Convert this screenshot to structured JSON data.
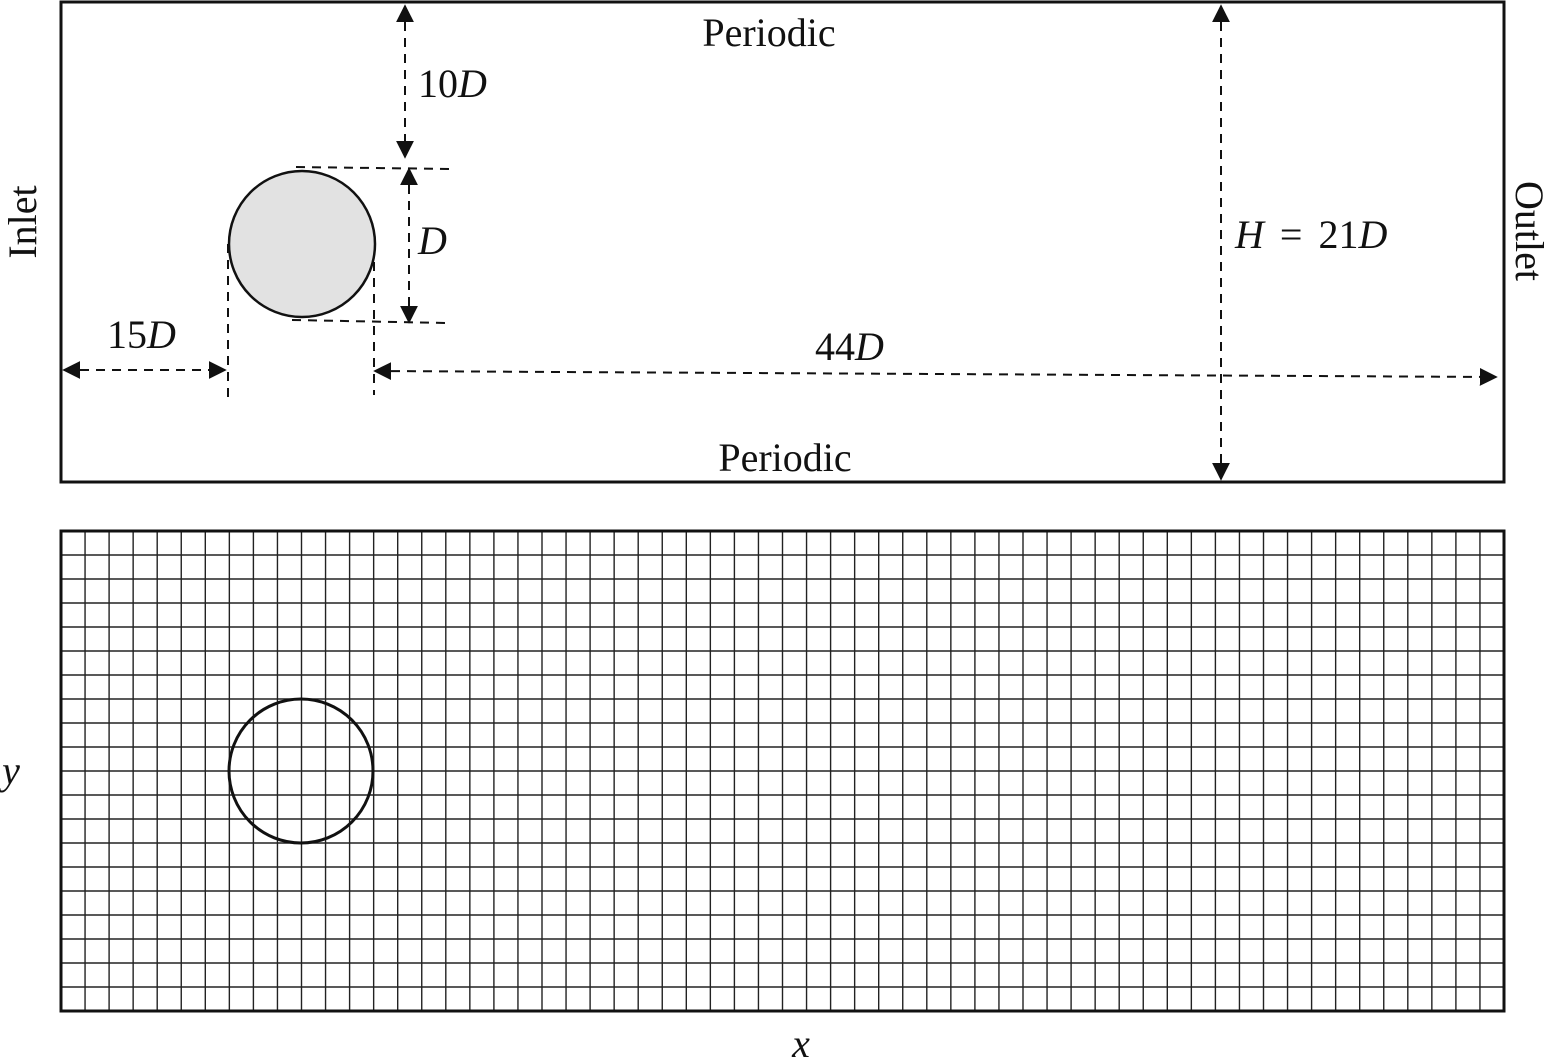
{
  "domain_panel": {
    "top_boundary": "Periodic",
    "bottom_boundary": "Periodic",
    "left_boundary": "Inlet",
    "right_boundary": "Outlet",
    "dim_top_gap": {
      "num": "10",
      "sym": "D"
    },
    "dim_diameter": {
      "sym": "D"
    },
    "dim_upstream": {
      "num": "15",
      "sym": "D"
    },
    "dim_downstream": {
      "num": "44",
      "sym": "D"
    },
    "dim_height": {
      "sym": "H",
      "eq": "=",
      "num": "21",
      "sym2": "D"
    },
    "cylinder_fill": "#e2e2e2"
  },
  "mesh_panel": {
    "x_axis_label": "x",
    "y_axis_label": "y",
    "columns": 60,
    "rows": 20
  }
}
